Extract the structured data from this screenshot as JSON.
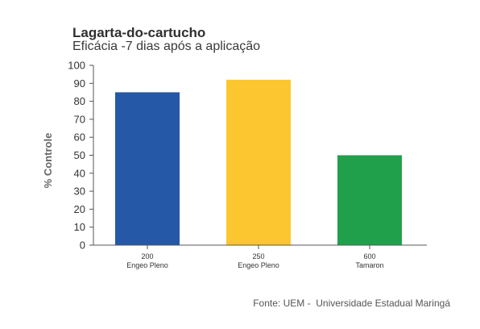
{
  "chart_data": {
    "type": "bar",
    "title": "Lagarta-do-cartucho",
    "subtitle": "Eficácia -7 dias após a aplicação",
    "ylabel": "% Controle",
    "xlabel": "",
    "ylim": [
      0,
      100
    ],
    "yticks": [
      "0",
      "10",
      "20",
      "30",
      "40",
      "50",
      "60",
      "70",
      "80",
      "90",
      "100"
    ],
    "categories": [
      {
        "line1": "200",
        "line2": "Engeo Pleno"
      },
      {
        "line1": "250",
        "line2": "Engeo Pleno"
      },
      {
        "line1": "600",
        "line2": "Tamaron"
      }
    ],
    "values": [
      85,
      92,
      50
    ],
    "colors": [
      "#2558a6",
      "#fbc62f",
      "#21a04b"
    ],
    "grid": false,
    "legend": "none"
  },
  "source": "Fonte: UEM -  Universidade Estadual Maringá"
}
